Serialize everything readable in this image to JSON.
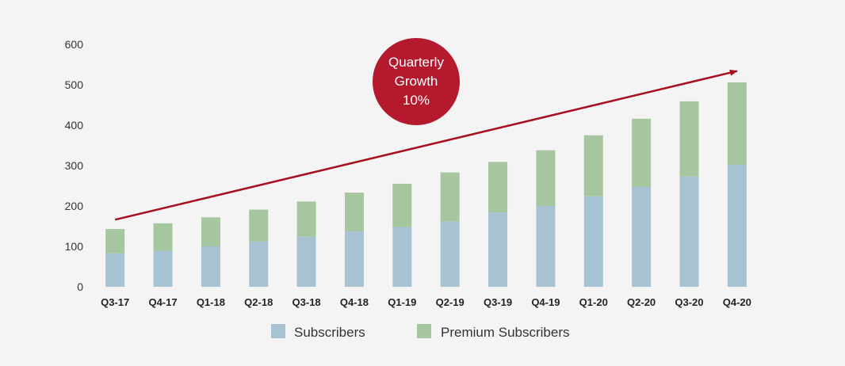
{
  "chart_data": {
    "type": "bar",
    "stacked": true,
    "categories": [
      "Q3-17",
      "Q4-17",
      "Q1-18",
      "Q2-18",
      "Q3-18",
      "Q4-18",
      "Q1-19",
      "Q2-19",
      "Q3-19",
      "Q4-19",
      "Q1-20",
      "Q2-20",
      "Q3-20",
      "Q4-20"
    ],
    "series": [
      {
        "name": "Subscribers",
        "color": "#a7c2d3",
        "values": [
          83,
          89,
          100,
          112,
          124,
          137,
          148,
          162,
          184,
          200,
          224,
          248,
          273,
          302
        ]
      },
      {
        "name": "Premium Subscribers",
        "color": "#a6c69f",
        "values": [
          60,
          68,
          72,
          79,
          87,
          96,
          107,
          121,
          125,
          138,
          151,
          168,
          186,
          204
        ]
      }
    ],
    "yticks": [
      0,
      100,
      200,
      300,
      400,
      500,
      600
    ],
    "ylim": [
      0,
      600
    ],
    "title": "",
    "xlabel": "",
    "ylabel": "",
    "grid": false,
    "legend_position": "bottom",
    "annotation": {
      "lines": [
        "Quarterly",
        "Growth",
        "10%"
      ],
      "color": "#b5192d",
      "arrow_color": "#a8101f",
      "arrow": {
        "from": {
          "category": "Q3-17",
          "value": 166
        },
        "to": {
          "category": "Q4-20",
          "value": 534
        }
      }
    }
  }
}
